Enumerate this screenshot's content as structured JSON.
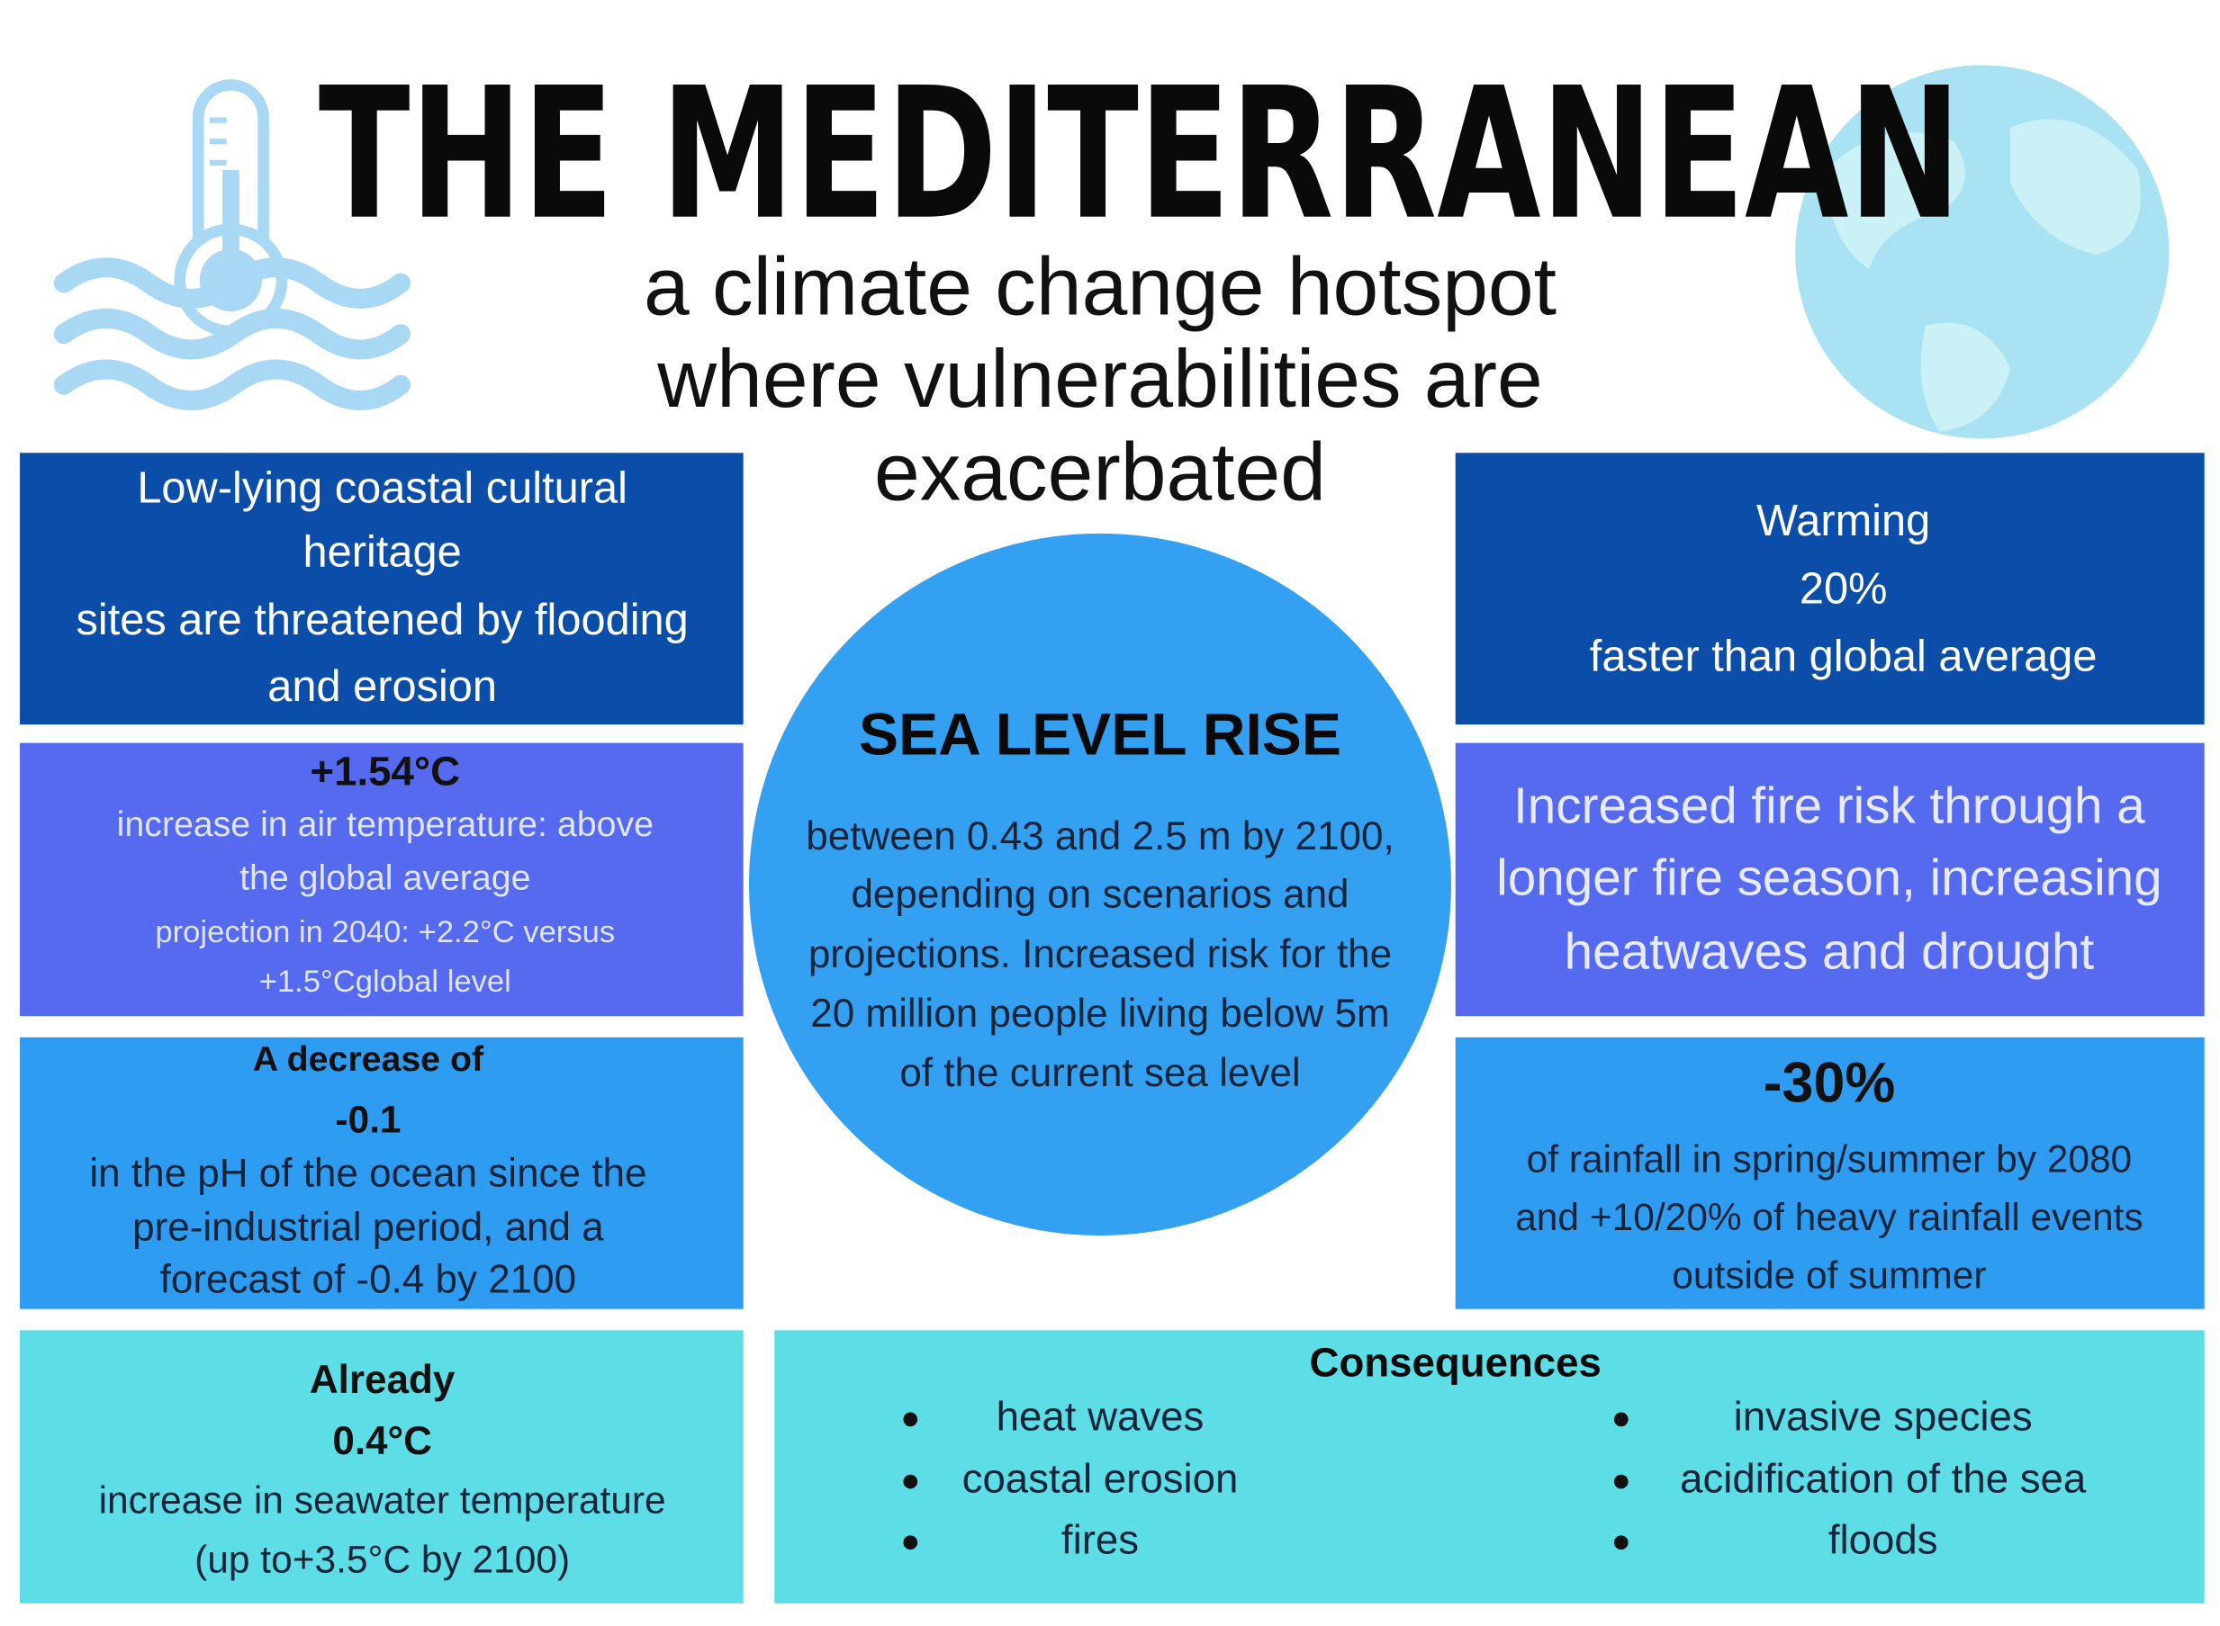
{
  "header": {
    "title": "THE MEDITERRANEAN",
    "subtitle": [
      "a climate change hotspot",
      "where vulnerabilities are",
      "exacerbated"
    ]
  },
  "left_panels": [
    [
      "Low-lying coastal cultural",
      "heritage",
      "sites are threatened by flooding",
      "and erosion"
    ],
    [
      "+1.54°C",
      "increase in air temperature: above",
      "the global average",
      "projection in 2040: +2.2°C versus",
      "+1.5°Cglobal level"
    ],
    [
      "A decrease of",
      "-0.1",
      "in the pH of the ocean since the",
      "pre-industrial period, and a",
      "forecast of -0.4 by 2100"
    ],
    [
      "Already",
      "0.4°C",
      "increase in seawater temperature",
      "(up to+3.5°C by 2100)"
    ]
  ],
  "right_panels": [
    [
      "Warming",
      "20%",
      "faster than global average"
    ],
    [
      "Increased fire risk through a",
      "longer fire season, increasing",
      "heatwaves and drought"
    ],
    [
      "-30%",
      "of rainfall in spring/summer by 2080",
      "and +10/20% of heavy rainfall events",
      "outside of summer"
    ]
  ],
  "center": {
    "title": "SEA LEVEL RISE",
    "lines": [
      "between 0.43 and 2.5 m by 2100,",
      "depending on scenarios and",
      "projections. Increased risk for the",
      "20 million people living below 5m",
      "of the current sea level"
    ]
  },
  "consequences": {
    "title": "Consequences",
    "left": [
      "heat waves",
      "coastal erosion",
      "fires"
    ],
    "right": [
      "invasive species",
      "acidification of the sea",
      "floods"
    ]
  }
}
